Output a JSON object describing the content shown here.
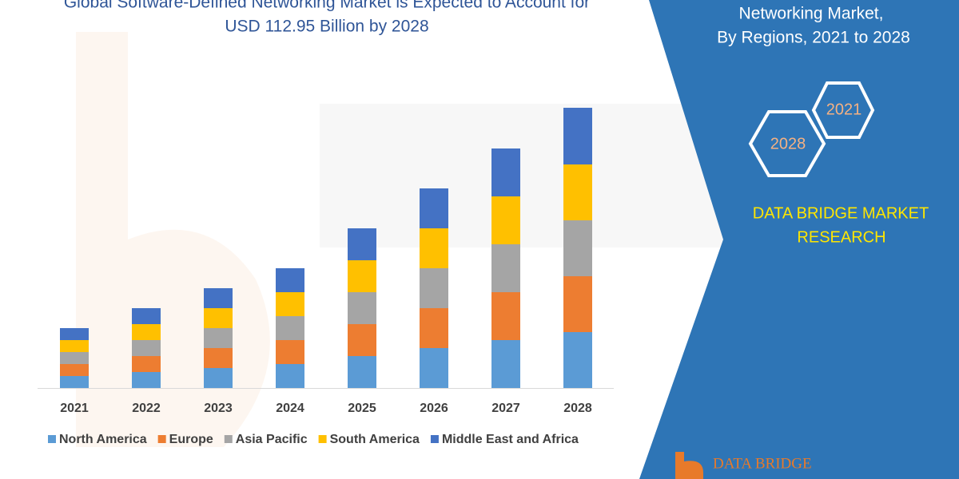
{
  "chart_data": {
    "type": "bar",
    "stacked": true,
    "title_lines": [
      "Global Software-Defined Networking Market is Expected to Account for",
      "USD 112.95 Billion by 2028"
    ],
    "categories": [
      "2021",
      "2022",
      "2023",
      "2024",
      "2025",
      "2026",
      "2027",
      "2028"
    ],
    "series": [
      {
        "name": "North America",
        "color": "#5b9bd5",
        "values": [
          15,
          20,
          25,
          30,
          40,
          50,
          60,
          70
        ]
      },
      {
        "name": "Europe",
        "color": "#ed7d31",
        "values": [
          15,
          20,
          25,
          30,
          40,
          50,
          60,
          70
        ]
      },
      {
        "name": "Asia Pacific",
        "color": "#a5a5a5",
        "values": [
          15,
          20,
          25,
          30,
          40,
          50,
          60,
          70
        ]
      },
      {
        "name": "South America",
        "color": "#ffc000",
        "values": [
          15,
          20,
          25,
          30,
          40,
          50,
          60,
          70
        ]
      },
      {
        "name": "Middle East and Africa",
        "color": "#4472c4",
        "values": [
          15,
          20,
          25,
          30,
          40,
          50,
          60,
          71
        ]
      }
    ],
    "legend": "bottom"
  },
  "panel": {
    "subtitle_lines": [
      "Networking Market,",
      "By Regions, 2021 to 2028"
    ],
    "hexagons": [
      "2021",
      "2028"
    ],
    "brand_lines": [
      "DATA BRIDGE MARKET",
      "RESEARCH"
    ],
    "logo": "DATA BRIDGE"
  }
}
